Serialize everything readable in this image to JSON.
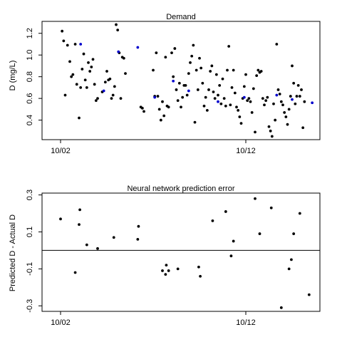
{
  "chart_data": [
    {
      "type": "scatter",
      "title": "Demand",
      "xlabel": "",
      "ylabel": "D (mg/L)",
      "x_axis": {
        "type": "date",
        "ticks": [
          {
            "date": "2000-10-02",
            "label": "10/02"
          },
          {
            "date": "2000-10-12",
            "label": "10/12"
          }
        ],
        "range": [
          "2000-10-01",
          "2000-10-16"
        ]
      },
      "yticks": [
        0.4,
        0.6,
        0.8,
        1.0,
        1.2
      ],
      "ytick_labels": [
        "0.4",
        "0.6",
        "0.8",
        "1.0",
        "1.2"
      ],
      "ylim": [
        0.22,
        1.31
      ],
      "series": [
        {
          "color": "#000000",
          "points": [
            [
              "2000-10-02 02:00",
              1.22
            ],
            [
              "2000-10-02 04:00",
              1.13
            ],
            [
              "2000-10-02 06:00",
              0.63
            ],
            [
              "2000-10-02 09:00",
              1.09
            ],
            [
              "2000-10-02 12:00",
              0.94
            ],
            [
              "2000-10-02 14:00",
              0.8
            ],
            [
              "2000-10-02 16:00",
              0.82
            ],
            [
              "2000-10-02 19:00",
              1.1
            ],
            [
              "2000-10-02 21:00",
              0.73
            ],
            [
              "2000-10-03 00:00",
              0.42
            ],
            [
              "2000-10-03 02:00",
              0.7
            ],
            [
              "2000-10-03 04:00",
              0.87
            ],
            [
              "2000-10-03 06:00",
              1.01
            ],
            [
              "2000-10-03 08:00",
              0.77
            ],
            [
              "2000-10-03 10:00",
              0.7
            ],
            [
              "2000-10-03 12:00",
              0.93
            ],
            [
              "2000-10-03 14:00",
              0.85
            ],
            [
              "2000-10-03 16:00",
              0.89
            ],
            [
              "2000-10-03 18:00",
              0.96
            ],
            [
              "2000-10-03 20:00",
              0.73
            ],
            [
              "2000-10-03 22:00",
              0.58
            ],
            [
              "2000-10-04 00:00",
              0.6
            ],
            [
              "2000-10-04 06:00",
              0.66
            ],
            [
              "2000-10-04 10:00",
              0.75
            ],
            [
              "2000-10-04 12:00",
              0.85
            ],
            [
              "2000-10-04 14:00",
              0.77
            ],
            [
              "2000-10-04 16:00",
              0.78
            ],
            [
              "2000-10-04 18:00",
              0.6
            ],
            [
              "2000-10-04 20:00",
              0.63
            ],
            [
              "2000-10-04 22:00",
              0.71
            ],
            [
              "2000-10-05 00:00",
              1.28
            ],
            [
              "2000-10-05 02:00",
              1.23
            ],
            [
              "2000-10-05 04:00",
              1.02
            ],
            [
              "2000-10-05 06:00",
              0.6
            ],
            [
              "2000-10-05 08:00",
              0.98
            ],
            [
              "2000-10-05 10:00",
              0.97
            ],
            [
              "2000-10-05 12:00",
              0.83
            ],
            [
              "2000-10-06 08:00",
              0.52
            ],
            [
              "2000-10-06 10:00",
              0.51
            ],
            [
              "2000-10-06 12:00",
              0.48
            ],
            [
              "2000-10-07 00:00",
              0.86
            ],
            [
              "2000-10-07 02:00",
              0.62
            ],
            [
              "2000-10-07 04:00",
              1.02
            ],
            [
              "2000-10-07 06:00",
              0.62
            ],
            [
              "2000-10-07 08:00",
              0.5
            ],
            [
              "2000-10-07 10:00",
              0.4
            ],
            [
              "2000-10-07 12:00",
              0.57
            ],
            [
              "2000-10-07 14:00",
              0.44
            ],
            [
              "2000-10-07 16:00",
              0.98
            ],
            [
              "2000-10-07 18:00",
              0.53
            ],
            [
              "2000-10-07 20:00",
              0.52
            ],
            [
              "2000-10-08 00:00",
              1.02
            ],
            [
              "2000-10-08 02:00",
              0.8
            ],
            [
              "2000-10-08 04:00",
              1.06
            ],
            [
              "2000-10-08 06:00",
              0.68
            ],
            [
              "2000-10-08 08:00",
              0.58
            ],
            [
              "2000-10-08 10:00",
              0.74
            ],
            [
              "2000-10-08 12:00",
              0.52
            ],
            [
              "2000-10-08 14:00",
              0.61
            ],
            [
              "2000-10-08 16:00",
              0.72
            ],
            [
              "2000-10-08 18:00",
              0.72
            ],
            [
              "2000-10-08 20:00",
              0.63
            ],
            [
              "2000-10-08 22:00",
              0.83
            ],
            [
              "2000-10-09 00:00",
              0.93
            ],
            [
              "2000-10-09 02:00",
              0.99
            ],
            [
              "2000-10-09 04:00",
              1.09
            ],
            [
              "2000-10-09 06:00",
              0.38
            ],
            [
              "2000-10-09 08:00",
              0.86
            ],
            [
              "2000-10-09 10:00",
              0.68
            ],
            [
              "2000-10-09 12:00",
              0.97
            ],
            [
              "2000-10-09 14:00",
              0.88
            ],
            [
              "2000-10-09 16:00",
              0.74
            ],
            [
              "2000-10-09 18:00",
              0.53
            ],
            [
              "2000-10-09 20:00",
              0.61
            ],
            [
              "2000-10-09 22:00",
              0.49
            ],
            [
              "2000-10-10 00:00",
              0.68
            ],
            [
              "2000-10-10 02:00",
              0.85
            ],
            [
              "2000-10-10 04:00",
              0.9
            ],
            [
              "2000-10-10 06:00",
              0.66
            ],
            [
              "2000-10-10 08:00",
              0.6
            ],
            [
              "2000-10-10 10:00",
              0.82
            ],
            [
              "2000-10-10 12:00",
              0.63
            ],
            [
              "2000-10-10 14:00",
              0.72
            ],
            [
              "2000-10-10 16:00",
              0.55
            ],
            [
              "2000-10-10 18:00",
              0.78
            ],
            [
              "2000-10-10 20:00",
              0.6
            ],
            [
              "2000-10-10 22:00",
              0.53
            ],
            [
              "2000-10-11 00:00",
              0.86
            ],
            [
              "2000-10-11 02:00",
              1.08
            ],
            [
              "2000-10-11 04:00",
              0.54
            ],
            [
              "2000-10-11 06:00",
              0.7
            ],
            [
              "2000-10-11 08:00",
              0.86
            ],
            [
              "2000-10-11 10:00",
              0.65
            ],
            [
              "2000-10-11 12:00",
              0.52
            ],
            [
              "2000-10-11 14:00",
              0.49
            ],
            [
              "2000-10-11 16:00",
              0.43
            ],
            [
              "2000-10-11 18:00",
              0.37
            ],
            [
              "2000-10-11 20:00",
              0.6
            ],
            [
              "2000-10-11 22:00",
              0.71
            ],
            [
              "2000-10-12 00:00",
              0.82
            ],
            [
              "2000-10-12 02:00",
              0.58
            ],
            [
              "2000-10-12 04:00",
              0.6
            ],
            [
              "2000-10-12 06:00",
              0.57
            ],
            [
              "2000-10-12 08:00",
              0.47
            ],
            [
              "2000-10-12 10:00",
              0.69
            ],
            [
              "2000-10-12 12:00",
              0.29
            ],
            [
              "2000-10-12 14:00",
              0.81
            ],
            [
              "2000-10-12 16:00",
              0.86
            ],
            [
              "2000-10-12 18:00",
              0.84
            ],
            [
              "2000-10-12 20:00",
              0.85
            ],
            [
              "2000-10-12 22:00",
              0.6
            ],
            [
              "2000-10-13 00:00",
              0.54
            ],
            [
              "2000-10-13 02:00",
              0.58
            ],
            [
              "2000-10-13 04:00",
              0.61
            ],
            [
              "2000-10-13 06:00",
              0.34
            ],
            [
              "2000-10-13 08:00",
              0.3
            ],
            [
              "2000-10-13 10:00",
              0.25
            ],
            [
              "2000-10-13 12:00",
              0.55
            ],
            [
              "2000-10-13 14:00",
              0.4
            ],
            [
              "2000-10-13 16:00",
              1.1
            ],
            [
              "2000-10-13 18:00",
              0.68
            ],
            [
              "2000-10-13 20:00",
              0.64
            ],
            [
              "2000-10-13 22:00",
              0.57
            ],
            [
              "2000-10-14 00:00",
              0.54
            ],
            [
              "2000-10-14 02:00",
              0.47
            ],
            [
              "2000-10-14 04:00",
              0.43
            ],
            [
              "2000-10-14 06:00",
              0.36
            ],
            [
              "2000-10-14 08:00",
              0.5
            ],
            [
              "2000-10-14 10:00",
              0.62
            ],
            [
              "2000-10-14 12:00",
              0.9
            ],
            [
              "2000-10-14 14:00",
              0.74
            ],
            [
              "2000-10-14 16:00",
              0.55
            ],
            [
              "2000-10-14 18:00",
              0.62
            ],
            [
              "2000-10-14 20:00",
              0.72
            ],
            [
              "2000-10-14 22:00",
              0.62
            ],
            [
              "2000-10-15 00:00",
              0.68
            ],
            [
              "2000-10-15 02:00",
              0.33
            ],
            [
              "2000-10-15 04:00",
              0.57
            ]
          ]
        },
        {
          "color": "#0000cc",
          "points": [
            [
              "2000-10-03 02:00",
              1.1
            ],
            [
              "2000-10-04 08:00",
              0.67
            ],
            [
              "2000-10-05 03:00",
              1.03
            ],
            [
              "2000-10-06 04:00",
              1.07
            ],
            [
              "2000-10-07 02:00",
              0.61
            ],
            [
              "2000-10-08 02:00",
              0.76
            ],
            [
              "2000-10-08 22:00",
              0.67
            ],
            [
              "2000-10-10 12:00",
              0.57
            ],
            [
              "2000-10-11 22:00",
              0.61
            ],
            [
              "2000-10-13 16:00",
              0.63
            ],
            [
              "2000-10-14 12:00",
              0.59
            ],
            [
              "2000-10-15 14:00",
              0.56
            ]
          ]
        }
      ]
    },
    {
      "type": "scatter",
      "title": "Neural network prediction error",
      "xlabel": "",
      "ylabel": "Predicted D - Actual D",
      "x_axis": {
        "type": "date",
        "ticks": [
          {
            "date": "2000-10-02",
            "label": "10/02"
          },
          {
            "date": "2000-10-12",
            "label": "10/12"
          }
        ],
        "range": [
          "2000-10-01",
          "2000-10-16"
        ]
      },
      "yticks": [
        -0.3,
        -0.1,
        0.1,
        0.3
      ],
      "ytick_labels": [
        "-0.3",
        "-0.1",
        "0.1",
        "0.3"
      ],
      "ylim": [
        -0.33,
        0.31
      ],
      "reference_line": 0,
      "series": [
        {
          "color": "#000000",
          "points": [
            [
              "2000-10-02 00:00",
              0.17
            ],
            [
              "2000-10-02 19:00",
              -0.12
            ],
            [
              "2000-10-03 00:00",
              0.14
            ],
            [
              "2000-10-03 01:00",
              0.22
            ],
            [
              "2000-10-03 10:00",
              0.03
            ],
            [
              "2000-10-04 00:00",
              0.01
            ],
            [
              "2000-10-04 21:00",
              0.07
            ],
            [
              "2000-10-06 04:00",
              0.06
            ],
            [
              "2000-10-06 05:00",
              0.13
            ],
            [
              "2000-10-07 12:00",
              -0.11
            ],
            [
              "2000-10-07 16:00",
              -0.13
            ],
            [
              "2000-10-07 17:00",
              -0.08
            ],
            [
              "2000-10-07 20:00",
              -0.11
            ],
            [
              "2000-10-08 08:00",
              -0.1
            ],
            [
              "2000-10-09 11:00",
              -0.09
            ],
            [
              "2000-10-09 13:00",
              -0.14
            ],
            [
              "2000-10-10 05:00",
              0.16
            ],
            [
              "2000-10-10 22:00",
              0.21
            ],
            [
              "2000-10-11 05:00",
              -0.03
            ],
            [
              "2000-10-11 08:00",
              0.05
            ],
            [
              "2000-10-12 12:00",
              0.28
            ],
            [
              "2000-10-12 18:00",
              0.09
            ],
            [
              "2000-10-13 09:00",
              0.23
            ],
            [
              "2000-10-13 22:00",
              -0.31
            ],
            [
              "2000-10-14 08:00",
              -0.1
            ],
            [
              "2000-10-14 11:00",
              -0.05
            ],
            [
              "2000-10-14 14:00",
              0.09
            ],
            [
              "2000-10-14 22:00",
              0.2
            ],
            [
              "2000-10-15 10:00",
              -0.24
            ]
          ]
        }
      ]
    }
  ]
}
